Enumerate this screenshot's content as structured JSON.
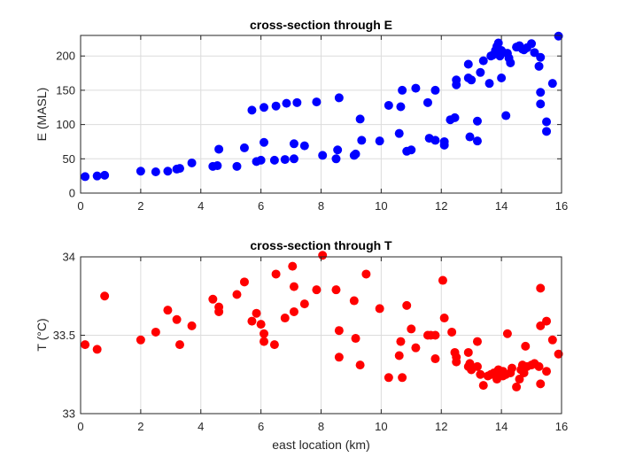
{
  "chart_data": [
    {
      "type": "scatter",
      "title": "cross-section through E",
      "xlabel": "",
      "ylabel": "E (MASL)",
      "xlim": [
        0,
        16
      ],
      "ylim": [
        0,
        230
      ],
      "xticks": [
        0,
        2,
        4,
        6,
        8,
        10,
        12,
        14,
        16
      ],
      "yticks": [
        0,
        50,
        100,
        150,
        200
      ],
      "xtick_labels": [
        "0",
        "2",
        "4",
        "6",
        "8",
        "10",
        "12",
        "14",
        "16"
      ],
      "ytick_labels": [
        "0",
        "50",
        "100",
        "150",
        "200"
      ],
      "grid": true,
      "color": "#0000ff",
      "x": [
        0.15,
        0.55,
        0.8,
        2.0,
        2.5,
        2.9,
        3.2,
        3.3,
        3.7,
        4.4,
        4.55,
        4.6,
        5.2,
        5.45,
        5.7,
        5.85,
        6.0,
        6.1,
        6.1,
        6.45,
        6.5,
        6.8,
        6.85,
        7.1,
        7.1,
        7.2,
        7.45,
        7.85,
        8.05,
        8.5,
        8.55,
        8.6,
        9.1,
        9.15,
        9.3,
        9.35,
        9.95,
        10.25,
        10.6,
        10.65,
        10.7,
        10.85,
        11.0,
        11.15,
        11.55,
        11.6,
        11.8,
        11.8,
        12.1,
        12.1,
        12.3,
        12.45,
        12.5,
        12.5,
        12.9,
        12.9,
        12.95,
        13.0,
        13.2,
        13.2,
        13.3,
        13.4,
        13.6,
        13.65,
        13.7,
        13.8,
        13.85,
        13.9,
        13.95,
        14.0,
        14.0,
        14.05,
        14.15,
        14.2,
        14.25,
        14.3,
        14.5,
        14.6,
        14.7,
        14.75,
        14.85,
        15.0,
        15.1,
        15.25,
        15.3,
        15.3,
        15.3,
        15.5,
        15.5,
        15.7,
        15.9
      ],
      "y": [
        24,
        25,
        26,
        32,
        31,
        32,
        35,
        36,
        44,
        39,
        40,
        64,
        39,
        66,
        121,
        46,
        48,
        74,
        125,
        48,
        127,
        49,
        131,
        50,
        72,
        132,
        69,
        133,
        55,
        50,
        63,
        139,
        55,
        57,
        108,
        77,
        76,
        128,
        87,
        126,
        150,
        61,
        63,
        153,
        132,
        80,
        77,
        150,
        75,
        70,
        107,
        110,
        158,
        165,
        188,
        168,
        82,
        165,
        76,
        105,
        176,
        193,
        160,
        200,
        201,
        208,
        214,
        219,
        200,
        168,
        208,
        205,
        113,
        204,
        197,
        190,
        213,
        215,
        210,
        209,
        212,
        218,
        205,
        185,
        147,
        130,
        198,
        104,
        90,
        160,
        229
      ]
    },
    {
      "type": "scatter",
      "title": "cross-section through T",
      "xlabel": "east location (km)",
      "ylabel": "T (°C)",
      "xlim": [
        0,
        16
      ],
      "ylim": [
        33,
        34
      ],
      "xticks": [
        0,
        2,
        4,
        6,
        8,
        10,
        12,
        14,
        16
      ],
      "yticks": [
        33,
        33.5,
        34
      ],
      "xtick_labels": [
        "0",
        "2",
        "4",
        "6",
        "8",
        "10",
        "12",
        "14",
        "16"
      ],
      "ytick_labels": [
        "33",
        "33.5",
        "34"
      ],
      "grid": true,
      "color": "#ff0000",
      "x": [
        0.15,
        0.55,
        0.8,
        2.0,
        2.5,
        2.9,
        3.2,
        3.3,
        3.7,
        4.4,
        4.6,
        4.6,
        5.2,
        5.45,
        5.7,
        5.85,
        6.0,
        6.1,
        6.1,
        6.45,
        6.5,
        6.8,
        7.05,
        7.1,
        7.1,
        7.45,
        7.85,
        8.05,
        8.5,
        8.6,
        8.6,
        9.1,
        9.15,
        9.3,
        9.5,
        9.95,
        10.25,
        10.6,
        10.65,
        10.7,
        10.85,
        11.0,
        11.15,
        11.55,
        11.65,
        11.8,
        11.8,
        12.05,
        12.1,
        12.35,
        12.45,
        12.5,
        12.5,
        12.9,
        12.9,
        12.95,
        13.0,
        13.2,
        13.2,
        13.3,
        13.4,
        13.55,
        13.65,
        13.75,
        13.85,
        13.9,
        13.95,
        14.05,
        14.05,
        14.15,
        14.2,
        14.3,
        14.35,
        14.5,
        14.6,
        14.65,
        14.7,
        14.75,
        14.8,
        14.85,
        15.0,
        15.1,
        15.25,
        15.3,
        15.3,
        15.3,
        15.5,
        15.5,
        15.7,
        15.9
      ],
      "y": [
        33.44,
        33.41,
        33.75,
        33.47,
        33.52,
        33.66,
        33.6,
        33.44,
        33.56,
        33.73,
        33.65,
        33.68,
        33.76,
        33.84,
        33.59,
        33.64,
        33.57,
        33.51,
        33.46,
        33.44,
        33.89,
        33.61,
        33.94,
        33.81,
        33.65,
        33.7,
        33.79,
        34.01,
        33.79,
        33.53,
        33.36,
        33.72,
        33.48,
        33.31,
        33.89,
        33.67,
        33.23,
        33.37,
        33.46,
        33.23,
        33.69,
        33.54,
        33.42,
        33.5,
        33.5,
        33.35,
        33.5,
        33.85,
        33.61,
        33.52,
        33.39,
        33.33,
        33.36,
        33.39,
        33.3,
        33.32,
        33.28,
        33.46,
        33.3,
        33.25,
        33.18,
        33.24,
        33.25,
        33.26,
        33.22,
        33.28,
        33.27,
        33.24,
        33.27,
        33.25,
        33.51,
        33.26,
        33.29,
        33.17,
        33.22,
        33.28,
        33.31,
        33.26,
        33.43,
        33.3,
        33.31,
        33.32,
        33.3,
        33.19,
        33.56,
        33.8,
        33.59,
        33.27,
        33.47,
        33.38
      ]
    }
  ]
}
